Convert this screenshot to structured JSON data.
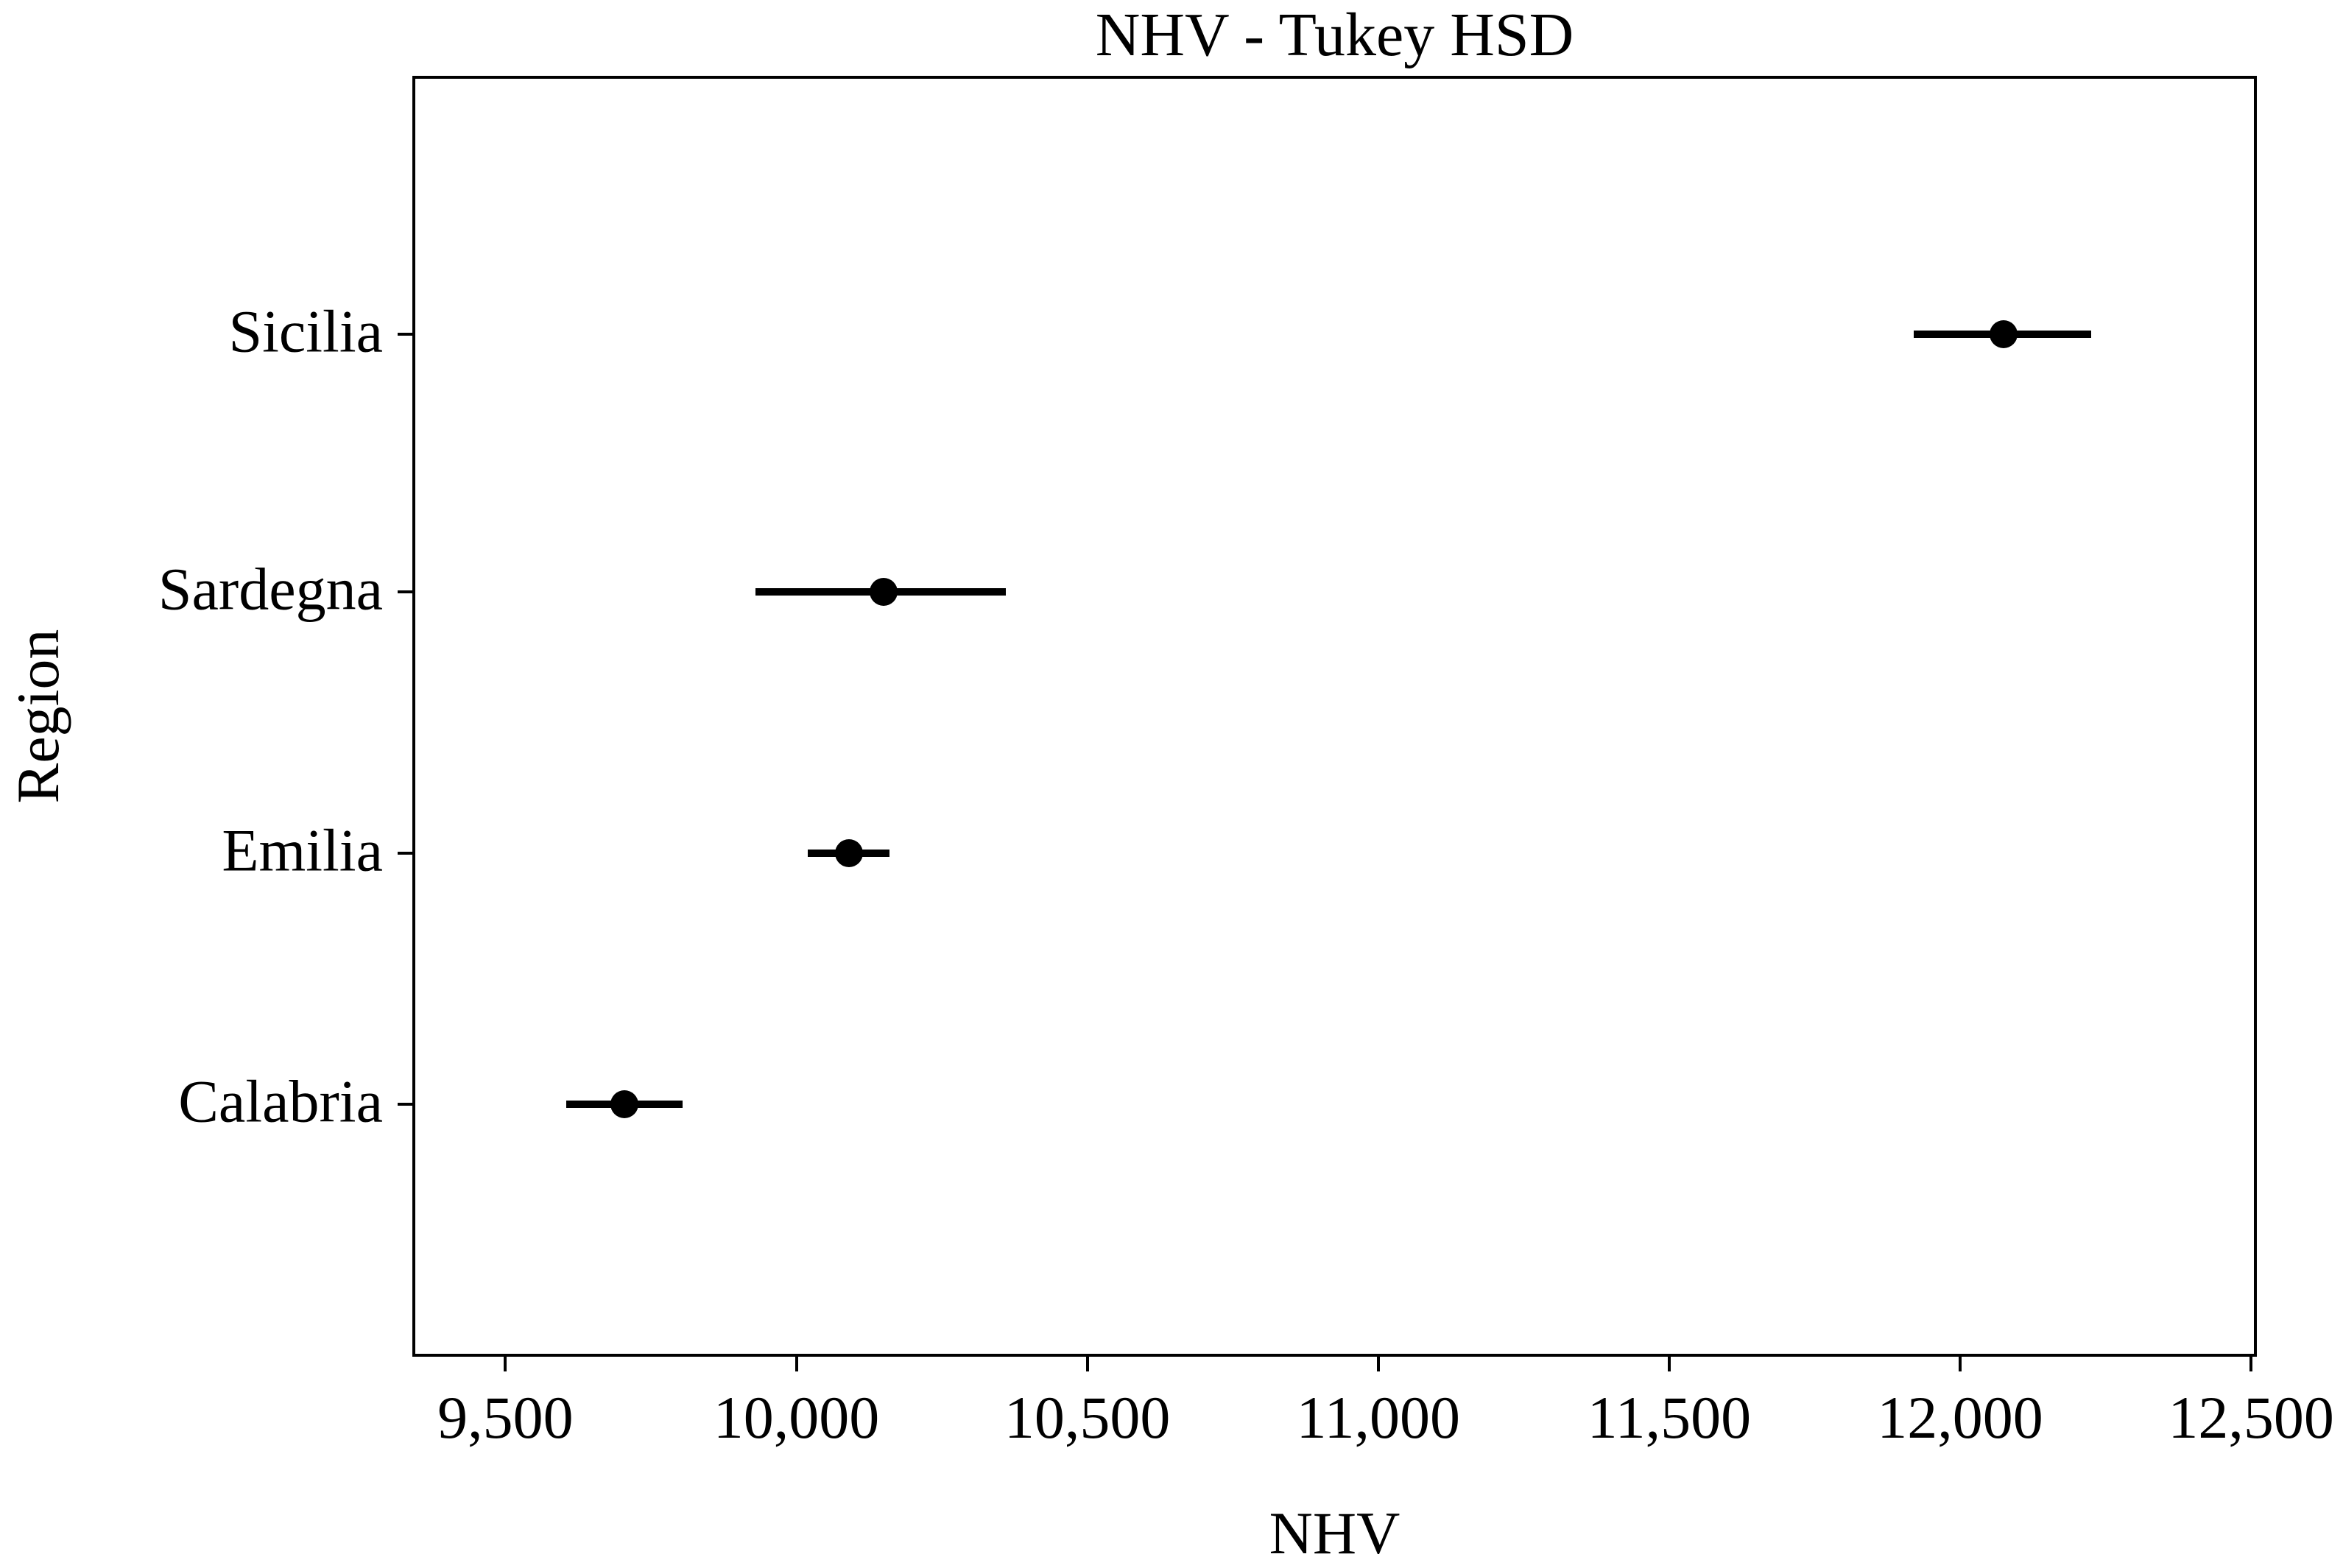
{
  "chart_data": {
    "type": "scatter",
    "subtype": "mean-ci-errorbar-dotplot",
    "title": "NHV - Tukey HSD",
    "xlabel": "NHV",
    "ylabel": "Region",
    "categories": [
      "Sicilia",
      "Sardegna",
      "Emilia",
      "Calabria"
    ],
    "series": [
      {
        "name": "mean",
        "values": [
          12075,
          10150,
          10090,
          9705
        ]
      },
      {
        "name": "ci_low",
        "values": [
          11920,
          9930,
          10020,
          9605
        ]
      },
      {
        "name": "ci_high",
        "values": [
          12225,
          10360,
          10160,
          9805
        ]
      }
    ],
    "xlim": [
      9340,
      12510
    ],
    "x_ticks": [
      9500,
      10000,
      10500,
      11000,
      11500,
      12000,
      12500
    ],
    "x_tick_labels": [
      "9,500",
      "10,000",
      "10,500",
      "11,000",
      "11,500",
      "12,000",
      "12,500"
    ],
    "row_fractions": [
      0.202,
      0.403,
      0.607,
      0.803
    ],
    "grid": false,
    "legend_position": "none",
    "colors": {
      "foreground": "#000000",
      "background": "#ffffff"
    }
  }
}
